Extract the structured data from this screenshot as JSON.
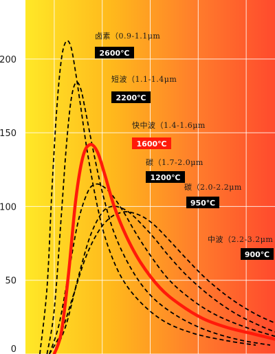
{
  "chart_data": {
    "type": "line",
    "title": "",
    "xlabel": "",
    "ylabel": "",
    "ylim": [
      0,
      240
    ],
    "xlim": [
      0.4,
      5.6
    ],
    "grid": true,
    "yticks": [
      0,
      50,
      100,
      150,
      200
    ],
    "ytick_labels": [
      "0",
      "50",
      "100",
      "150",
      "200"
    ],
    "background_gradient": [
      "#ffe827",
      "#ffb81c",
      "#ff7a2c",
      "#ff4a2d"
    ],
    "series": [
      {
        "name": "卤素（0.9-1.1μm",
        "temperature": "2600℃",
        "style": "dashed",
        "color": "#000000",
        "badge_color": "#000000",
        "x": [
          0.7,
          0.85,
          0.95,
          1.05,
          1.15,
          1.25,
          1.35,
          1.45,
          1.55,
          1.7,
          1.9,
          2.1,
          2.4,
          2.8,
          3.3,
          3.9,
          4.6,
          5.2
        ],
        "y": [
          0,
          45,
          110,
          165,
          200,
          212,
          208,
          190,
          168,
          135,
          100,
          75,
          52,
          35,
          22,
          14,
          9,
          6
        ]
      },
      {
        "name": "短波（1.1-1.4μm",
        "temperature": "2200℃",
        "style": "dashed",
        "color": "#000000",
        "badge_color": "#000000",
        "x": [
          0.85,
          1.0,
          1.15,
          1.25,
          1.35,
          1.45,
          1.55,
          1.65,
          1.8,
          2.0,
          2.25,
          2.6,
          3.0,
          3.5,
          4.1,
          4.8,
          5.5
        ],
        "y": [
          0,
          30,
          95,
          140,
          172,
          184,
          180,
          165,
          140,
          110,
          82,
          58,
          40,
          27,
          17,
          10,
          6
        ]
      },
      {
        "name": "快中波（1.4-1.6μm",
        "temperature": "1600℃",
        "style": "solid",
        "color": "#ff1a0a",
        "badge_color": "#ff1a0a",
        "x": [
          1.0,
          1.15,
          1.3,
          1.45,
          1.6,
          1.75,
          1.9,
          2.05,
          2.25,
          2.5,
          2.8,
          3.2,
          3.6,
          4.1,
          4.6,
          5.1,
          5.6
        ],
        "y": [
          0,
          15,
          55,
          105,
          134,
          142,
          137,
          122,
          100,
          80,
          62,
          45,
          34,
          24,
          18,
          14,
          10
        ]
      },
      {
        "name": "碳（1.7-2.0μm",
        "temperature": "1200℃",
        "style": "dashed",
        "color": "#000000",
        "badge_color": "#000000",
        "x": [
          0.9,
          1.1,
          1.3,
          1.5,
          1.7,
          1.85,
          2.0,
          2.2,
          2.45,
          2.7,
          3.0,
          3.4,
          3.9,
          4.4,
          5.0,
          5.6
        ],
        "y": [
          0,
          20,
          55,
          90,
          110,
          115,
          114,
          108,
          96,
          82,
          67,
          50,
          36,
          26,
          18,
          12
        ]
      },
      {
        "name": "碳（2.0-2.2μm",
        "temperature": "950℃",
        "style": "dashed",
        "color": "#000000",
        "badge_color": "#000000",
        "x": [
          1.0,
          1.25,
          1.5,
          1.75,
          2.0,
          2.2,
          2.4,
          2.6,
          2.85,
          3.1,
          3.4,
          3.8,
          4.3,
          4.8,
          5.3,
          5.6
        ],
        "y": [
          0,
          20,
          52,
          80,
          96,
          100,
          99,
          95,
          87,
          78,
          66,
          52,
          38,
          27,
          19,
          15
        ]
      },
      {
        "name": "中波（2.2-3.2μm",
        "temperature": "900℃",
        "style": "dashed",
        "color": "#000000",
        "badge_color": "#000000",
        "x": [
          0.9,
          1.15,
          1.4,
          1.65,
          1.9,
          2.15,
          2.4,
          2.6,
          2.85,
          3.1,
          3.4,
          3.8,
          4.2,
          4.7,
          5.2,
          5.6
        ],
        "y": [
          0,
          15,
          40,
          65,
          82,
          92,
          96,
          96,
          93,
          87,
          77,
          63,
          50,
          37,
          27,
          21
        ]
      }
    ]
  }
}
